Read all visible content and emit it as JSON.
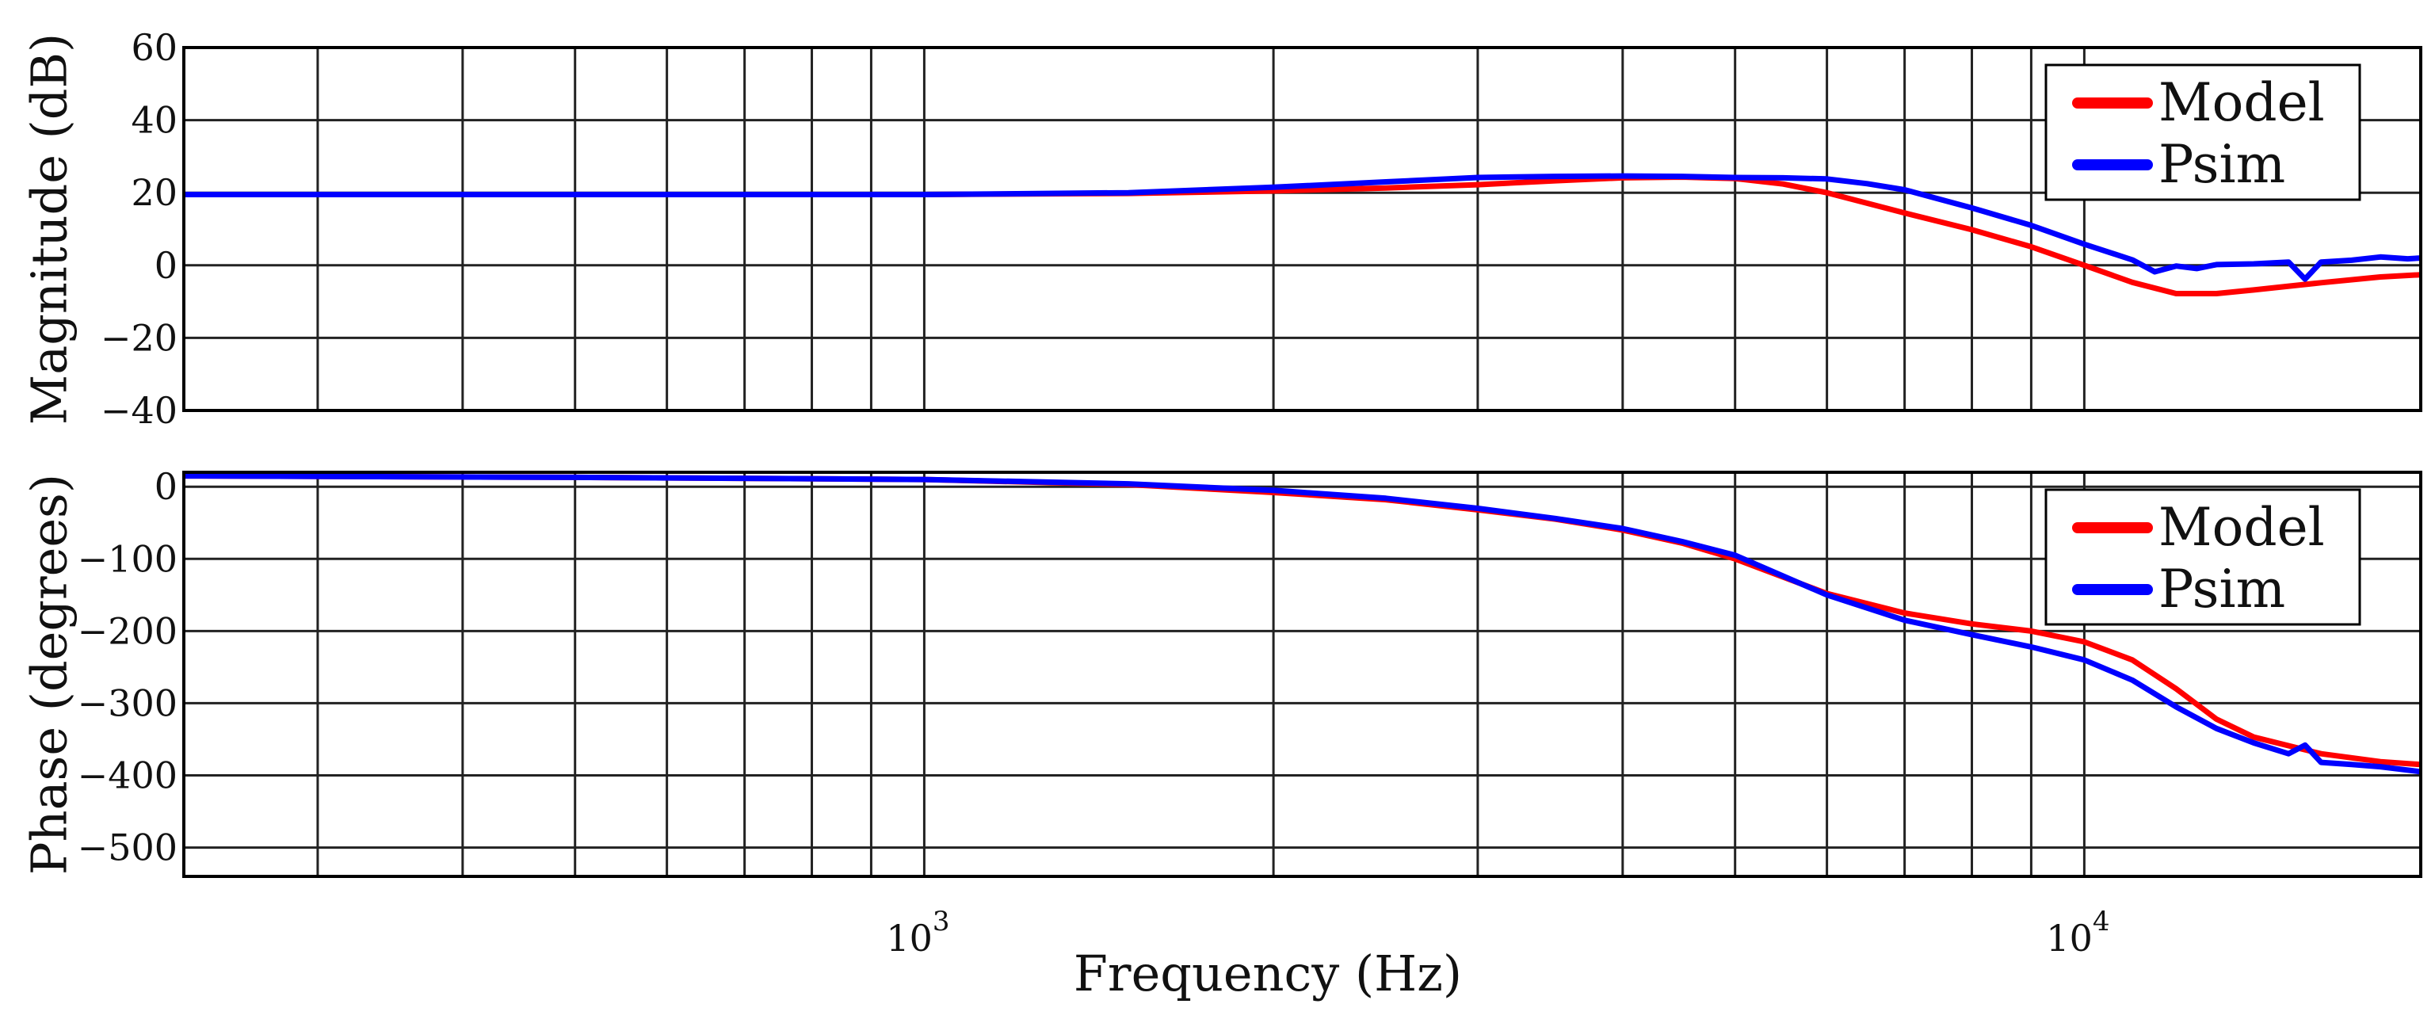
{
  "chart_data": [
    {
      "type": "line",
      "id": "magnitude",
      "xscale": "log",
      "xlim": [
        230,
        19500
      ],
      "ylim": [
        -40,
        60
      ],
      "ylabel": "Magnitude (dB)",
      "xlabel": "",
      "yticks": [
        60,
        40,
        20,
        0,
        -20,
        -40
      ],
      "ytick_labels": [
        "60",
        "40",
        "20",
        "0",
        "−20",
        "−40"
      ],
      "grid": true,
      "legend": {
        "position": "top-right",
        "entries": [
          "Model",
          "Psim"
        ]
      },
      "series": [
        {
          "name": "Model",
          "color": "#ff0000",
          "x": [
            230,
            500,
            1000,
            1500,
            2000,
            2500,
            3000,
            3500,
            4000,
            4500,
            5000,
            5500,
            6000,
            7000,
            8000,
            9000,
            10000,
            11000,
            12000,
            13000,
            14000,
            16000,
            18000,
            19500
          ],
          "y": [
            19.5,
            19.5,
            19.5,
            19.8,
            20.5,
            21.3,
            22.2,
            23.3,
            24.1,
            24.3,
            23.9,
            22.4,
            20.0,
            14.4,
            9.8,
            5.1,
            0.0,
            -4.7,
            -7.8,
            -7.8,
            -6.8,
            -4.8,
            -3.2,
            -2.6
          ]
        },
        {
          "name": "Psim",
          "color": "#0000ff",
          "x": [
            230,
            500,
            1000,
            1500,
            2000,
            2500,
            3000,
            3500,
            4000,
            4500,
            5000,
            5500,
            6000,
            6500,
            7000,
            8000,
            9000,
            10000,
            11000,
            11500,
            12000,
            12500,
            13000,
            14000,
            15000,
            15500,
            16000,
            17000,
            18000,
            19000,
            19500
          ],
          "y": [
            19.5,
            19.5,
            19.5,
            20.0,
            21.5,
            23.0,
            24.2,
            24.5,
            24.6,
            24.5,
            24.2,
            24.1,
            23.8,
            22.5,
            20.8,
            15.8,
            11.0,
            5.8,
            1.5,
            -1.8,
            -0.2,
            -0.9,
            0.2,
            0.4,
            0.9,
            -3.8,
            0.9,
            1.4,
            2.3,
            1.8,
            2.0
          ]
        }
      ]
    },
    {
      "type": "line",
      "id": "phase",
      "xscale": "log",
      "xlim": [
        230,
        19500
      ],
      "ylim": [
        -540,
        20
      ],
      "ylabel": "Phase (degrees)",
      "xlabel": "Frequency (Hz)",
      "yticks": [
        0,
        -100,
        -200,
        -300,
        -400,
        -500
      ],
      "ytick_labels": [
        "0",
        "−100",
        "−200",
        "−300",
        "−400",
        "−500"
      ],
      "xtick_labels": [
        {
          "base": "10",
          "exp": "3",
          "value": 1000
        },
        {
          "base": "10",
          "exp": "4",
          "value": 10000
        }
      ],
      "grid": true,
      "legend": {
        "position": "top-right",
        "entries": [
          "Model",
          "Psim"
        ]
      },
      "series": [
        {
          "name": "Model",
          "color": "#ff0000",
          "x": [
            230,
            500,
            1000,
            1500,
            2000,
            2500,
            3000,
            3500,
            4000,
            4500,
            5000,
            6000,
            7000,
            8000,
            9000,
            10000,
            11000,
            12000,
            13000,
            14000,
            16000,
            18000,
            19500
          ],
          "y": [
            15,
            13,
            10,
            3,
            -8,
            -18,
            -32,
            -45,
            -60,
            -78,
            -100,
            -148,
            -175,
            -190,
            -200,
            -215,
            -240,
            -280,
            -322,
            -347,
            -370,
            -381,
            -385
          ]
        },
        {
          "name": "Psim",
          "color": "#0000ff",
          "x": [
            230,
            500,
            1000,
            1500,
            2000,
            2500,
            3000,
            3500,
            4000,
            4500,
            5000,
            6000,
            7000,
            8000,
            9000,
            10000,
            11000,
            12000,
            13000,
            14000,
            15000,
            15500,
            16000,
            17000,
            18000,
            19500
          ],
          "y": [
            15,
            13,
            10,
            4,
            -5,
            -16,
            -30,
            -44,
            -58,
            -76,
            -95,
            -150,
            -185,
            -205,
            -222,
            -240,
            -268,
            -305,
            -335,
            -355,
            -370,
            -358,
            -382,
            -385,
            -388,
            -395
          ]
        }
      ]
    }
  ],
  "legend_labels": {
    "model": "Model",
    "psim": "Psim"
  },
  "axes": {
    "magnitude_ylabel": "Magnitude (dB)",
    "phase_ylabel": "Phase (degrees)",
    "xlabel": "Frequency (Hz)"
  }
}
